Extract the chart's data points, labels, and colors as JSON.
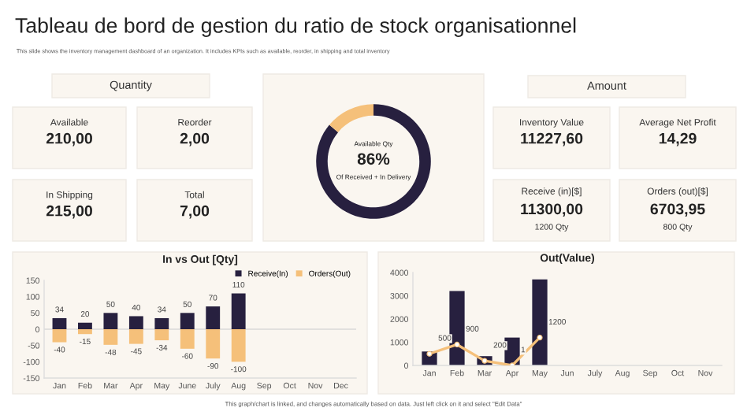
{
  "chart_data": [
    {
      "type": "other",
      "title": "Tableau de bord de gestion du ratio de stock organisationnel",
      "subtitle": "This slide shows the inventory management dashboard of an organization. It includes KPIs such as available, reorder, in shipping and total inventory",
      "annotations": [
        "This graph/chart is linked, and changes automatically based on data. Just left click on it and select \"Edit Data\""
      ]
    },
    {
      "type": "other",
      "title": "Quantity"
    },
    {
      "type": "other",
      "title": "Available",
      "annotations": [
        "210,00"
      ]
    },
    {
      "type": "other",
      "title": "Reorder",
      "annotations": [
        "2,00"
      ]
    },
    {
      "type": "other",
      "title": "In Shipping",
      "annotations": [
        "215,00"
      ]
    },
    {
      "type": "other",
      "title": "Total",
      "annotations": [
        "7,00"
      ]
    },
    {
      "type": "donut",
      "categories": [
        null,
        null
      ],
      "values": [
        86,
        14
      ],
      "colors": [
        "#27203f",
        "#f5c07a"
      ],
      "annotations": [
        "Available Qty",
        "86%",
        "Of Received + In Delivery"
      ]
    },
    {
      "type": "other",
      "title": "Amount"
    },
    {
      "type": "other",
      "title": "Inventory Value",
      "annotations": [
        "11227,60"
      ]
    },
    {
      "type": "other",
      "title": "Average Net Profit",
      "annotations": [
        "14,29"
      ]
    },
    {
      "type": "other",
      "title": "Receive (in)[$]",
      "annotations": [
        "11300,00",
        "1200 Qty"
      ]
    },
    {
      "type": "other",
      "title": "Orders (out)[$]",
      "annotations": [
        "6703,95",
        "800 Qty"
      ]
    },
    {
      "type": "bar",
      "title": "In vs Out [Qty]",
      "stacked": true,
      "data_labels": true,
      "legend": "top right",
      "grid": false,
      "categories": [
        "Jan",
        "Feb",
        "Mar",
        "Apr",
        "May",
        "June",
        "July",
        "Aug",
        "Sep",
        "Oct",
        "Nov",
        "Dec"
      ],
      "ylim": [
        -150,
        150
      ],
      "yticks": [
        -150,
        -100,
        -50,
        0,
        50,
        100,
        150
      ],
      "ref_lines": [
        {
          "axis": "y",
          "value": 0,
          "color": "#d9d9d9"
        }
      ],
      "series": [
        {
          "name": "Receive(In)",
          "color": "#27203f",
          "values": [
            34,
            20,
            50,
            40,
            34,
            50,
            70,
            110,
            null,
            null,
            null,
            null
          ]
        },
        {
          "name": "Orders(Out)",
          "color": "#f5c07a",
          "values": [
            -40,
            -15,
            -48,
            -45,
            -34,
            -60,
            -90,
            -100,
            null,
            null,
            null,
            null
          ]
        }
      ]
    },
    {
      "type": "bar",
      "title": "Out(Value)",
      "grid": false,
      "categories": [
        "Jan",
        "Feb",
        "Mar",
        "Apr",
        "May",
        "Jun",
        "July",
        "Aug",
        "Sep",
        "Oct",
        "Nov"
      ],
      "ylim": [
        0,
        4000
      ],
      "yticks": [
        0,
        1000,
        2000,
        3000,
        4000
      ],
      "series": [
        {
          "color": "#27203f",
          "values": [
            600,
            3200,
            400,
            1200,
            3700,
            null,
            null,
            null,
            null,
            null,
            null
          ]
        },
        {
          "type": "line",
          "color": "#f5c07a",
          "marker": "circle",
          "line_style": "solid",
          "values": [
            500,
            900,
            200,
            1,
            1200,
            null,
            null,
            null,
            null,
            null,
            null
          ],
          "value_labels": [
            "500",
            "900",
            "200",
            "1",
            "1200",
            null,
            null,
            null,
            null,
            null,
            null
          ]
        }
      ]
    }
  ]
}
